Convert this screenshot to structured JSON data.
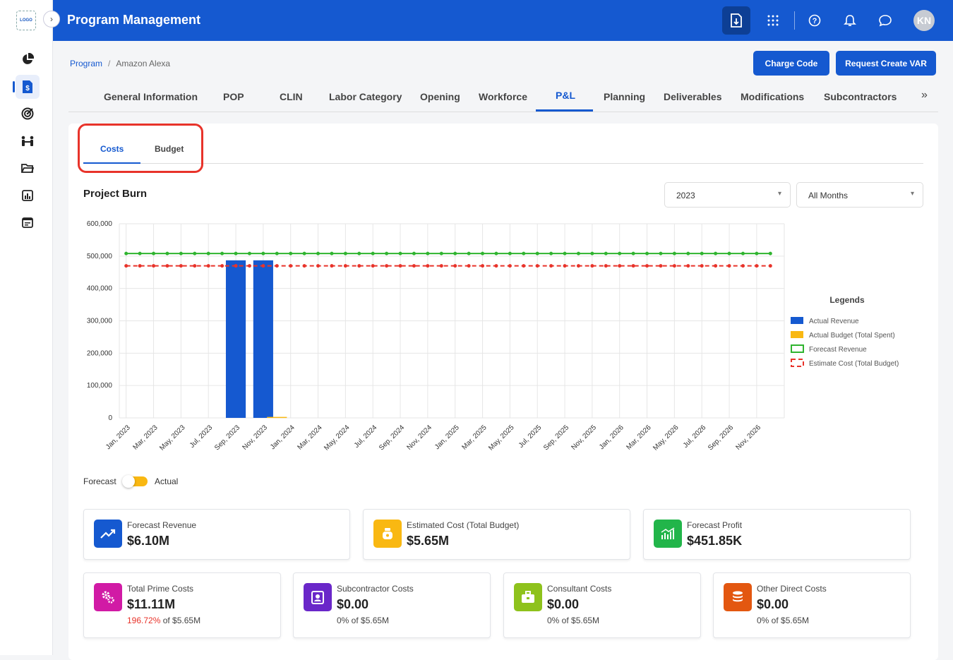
{
  "app": {
    "logo": "LOGO",
    "title": "Program Management",
    "avatar_initials": "KN"
  },
  "sidebar": {
    "items": [
      {
        "icon": "pie-chart-icon"
      },
      {
        "icon": "billing-document-icon",
        "active": true
      },
      {
        "icon": "target-icon"
      },
      {
        "icon": "team-icon"
      },
      {
        "icon": "folder-icon"
      },
      {
        "icon": "bar-report-icon"
      },
      {
        "icon": "calendar-icon"
      }
    ]
  },
  "breadcrumb": {
    "root": "Program",
    "separator": "/",
    "current": "Amazon Alexa"
  },
  "actions": {
    "charge_code": "Charge Code",
    "request_var": "Request Create VAR"
  },
  "tabs": [
    "General Information",
    "POP",
    "CLIN",
    "Labor Category",
    "Opening",
    "Workforce",
    "P&L",
    "Planning",
    "Deliverables",
    "Modifications",
    "Subcontractors"
  ],
  "active_tab": "P&L",
  "more_tabs": "»",
  "subtabs": {
    "costs": "Costs",
    "budget": "Budget",
    "active": "Costs"
  },
  "section": {
    "title": "Project Burn"
  },
  "filters": {
    "year": "2023",
    "months": "All Months"
  },
  "toggle": {
    "left": "Forecast",
    "right": "Actual"
  },
  "chart_data": {
    "type": "bar",
    "categories": [
      "Jan, 2023",
      "Feb, 2023",
      "Mar, 2023",
      "Apr, 2023",
      "May, 2023",
      "Jun, 2023",
      "Jul, 2023",
      "Aug, 2023",
      "Sep, 2023",
      "Oct, 2023",
      "Nov, 2023",
      "Dec, 2023",
      "Jan, 2024",
      "Feb, 2024",
      "Mar, 2024",
      "Apr, 2024",
      "May, 2024",
      "Jun, 2024",
      "Jul, 2024",
      "Aug, 2024",
      "Sep, 2024",
      "Oct, 2024",
      "Nov, 2024",
      "Dec, 2024",
      "Jan, 2025",
      "Feb, 2025",
      "Mar, 2025",
      "Apr, 2025",
      "May, 2025",
      "Jun, 2025",
      "Jul, 2025",
      "Aug, 2025",
      "Sep, 2025",
      "Oct, 2025",
      "Nov, 2025",
      "Dec, 2025",
      "Jan, 2026",
      "Feb, 2026",
      "Mar, 2026",
      "Apr, 2026",
      "May, 2026",
      "Jun, 2026",
      "Jul, 2026",
      "Aug, 2026",
      "Sep, 2026",
      "Oct, 2026",
      "Nov, 2026",
      "Dec, 2026"
    ],
    "tick_labels": [
      "Jan, 2023",
      "Mar, 2023",
      "May, 2023",
      "Jul, 2023",
      "Sep, 2023",
      "Nov, 2023",
      "Jan, 2024",
      "Mar, 2024",
      "May, 2024",
      "Jul, 2024",
      "Sep, 2024",
      "Nov, 2024",
      "Jan, 2025",
      "Mar, 2025",
      "May, 2025",
      "Jul, 2025",
      "Sep, 2025",
      "Nov, 2025",
      "Jan, 2026",
      "Mar, 2026",
      "May, 2026",
      "Jul, 2026",
      "Sep, 2026",
      "Nov, 2026"
    ],
    "y_ticks": [
      "0",
      "100,000",
      "200,000",
      "300,000",
      "400,000",
      "500,000",
      "600,000"
    ],
    "ylim": [
      0,
      600000
    ],
    "grid": true,
    "legend": {
      "title": "Legends",
      "placement": "right"
    },
    "series": [
      {
        "name": "Actual Revenue",
        "kind": "bar",
        "color": "#1559d0",
        "points": [
          [
            "Sep, 2023",
            487000
          ],
          [
            "Nov, 2023",
            487000
          ]
        ]
      },
      {
        "name": "Actual Budget (Total Spent)",
        "kind": "bar",
        "color": "#f9b812",
        "points": [
          [
            "Dec, 2023",
            3000
          ]
        ]
      },
      {
        "name": "Forecast Revenue",
        "kind": "line",
        "color": "#2fb42f",
        "value": 508000
      },
      {
        "name": "Estimate Cost (Total Budget)",
        "kind": "dashed-line",
        "color": "#e8332a",
        "value": 470000
      }
    ]
  },
  "stats_row1": [
    {
      "label": "Forecast Revenue",
      "value": "$6.10M",
      "icon": "trend-up-icon",
      "color": "#1559d0"
    },
    {
      "label": "Estimated Cost (Total Budget)",
      "value": "$5.65M",
      "icon": "money-bag-icon",
      "color": "#f9b812"
    },
    {
      "label": "Forecast Profit",
      "value": "$451.85K",
      "icon": "profit-chart-icon",
      "color": "#22b54a"
    }
  ],
  "stats_row2": [
    {
      "label": "Total Prime Costs",
      "value": "$11.11M",
      "pct": "196.72%",
      "of": " of $5.65M",
      "icon": "gears-icon",
      "color": "#d11aa5"
    },
    {
      "label": "Subcontractor Costs",
      "value": "$0.00",
      "pct": "0%",
      "of": " of $5.65M",
      "icon": "contact-badge-icon",
      "color": "#6a27c9"
    },
    {
      "label": "Consultant Costs",
      "value": "$0.00",
      "pct": "0%",
      "of": " of $5.65M",
      "icon": "briefcase-icon",
      "color": "#8ec21c"
    },
    {
      "label": "Other Direct Costs",
      "value": "$0.00",
      "pct": "0%",
      "of": " of $5.65M",
      "icon": "coins-stack-icon",
      "color": "#e35710"
    }
  ]
}
